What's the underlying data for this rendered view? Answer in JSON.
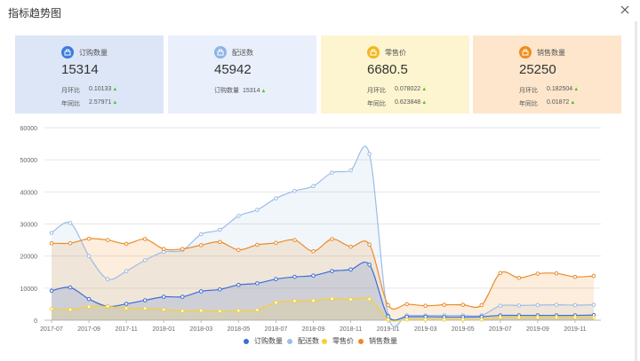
{
  "modal": {
    "title": "指标趋势图"
  },
  "cards": [
    {
      "name": "订购数量",
      "value": "15314",
      "accent": "#3b7be0",
      "bg": "#dce6f7",
      "rows": [
        {
          "label": "月环比",
          "value": "0.10133"
        },
        {
          "label": "年同比",
          "value": "2.57971"
        }
      ]
    },
    {
      "name": "配送数",
      "value": "45942",
      "accent": "#8fb4e6",
      "bg": "#e9effb",
      "rows": [
        {
          "label": "订购数量",
          "value": "15314"
        }
      ]
    },
    {
      "name": "零售价",
      "value": "6680.5",
      "accent": "#f2b821",
      "bg": "#fdf5cf",
      "rows": [
        {
          "label": "月环比",
          "value": "0.078022"
        },
        {
          "label": "年同比",
          "value": "0.623848"
        }
      ]
    },
    {
      "name": "销售数量",
      "value": "25250",
      "accent": "#ef8b1d",
      "bg": "#fde6cc",
      "rows": [
        {
          "label": "月环比",
          "value": "0.182504"
        },
        {
          "label": "年同比",
          "value": "0.01872"
        }
      ]
    }
  ],
  "chart_data": {
    "type": "area",
    "y_ticks": [
      "0",
      "10000",
      "20000",
      "30000",
      "40000",
      "50000",
      "60000"
    ],
    "ylim": [
      0,
      60000
    ],
    "x_ticks": [
      "2017-07",
      "2017-09",
      "2017-11",
      "2018-01",
      "2018-03",
      "2018-05",
      "2018-07",
      "2018-09",
      "2018-11",
      "2019-01",
      "2019-03",
      "2019-05",
      "2019-07",
      "2019-09",
      "2019-11"
    ],
    "categories": [
      "2017-07",
      "2017-08",
      "2017-09",
      "2017-10",
      "2017-11",
      "2017-12",
      "2018-01",
      "2018-02",
      "2018-03",
      "2018-04",
      "2018-05",
      "2018-06",
      "2018-07",
      "2018-08",
      "2018-09",
      "2018-10",
      "2018-11",
      "2018-12",
      "2019-01",
      "2019-02",
      "2019-03",
      "2019-04",
      "2019-05",
      "2019-06",
      "2019-07",
      "2019-08",
      "2019-09",
      "2019-10",
      "2019-11",
      "2019-12"
    ],
    "grid": true,
    "legend_position": "bottom",
    "series": [
      {
        "name": "订购数量",
        "color": "#3b6fd4",
        "values": [
          9200,
          10200,
          6600,
          4300,
          5100,
          6200,
          7300,
          7300,
          9000,
          9600,
          11000,
          11500,
          12800,
          13500,
          13900,
          15300,
          15800,
          17300,
          1200,
          1100,
          1100,
          1000,
          1000,
          1100,
          1500,
          1500,
          1500,
          1500,
          1500,
          1600
        ]
      },
      {
        "name": "配送数",
        "color": "#9cbde6",
        "values": [
          27200,
          30300,
          20000,
          12800,
          15300,
          18700,
          21300,
          21800,
          26800,
          28200,
          32500,
          34400,
          38000,
          40300,
          41800,
          46000,
          46700,
          51800,
          1500,
          1500,
          1500,
          1500,
          1500,
          1500,
          4500,
          4600,
          4700,
          4800,
          4700,
          4800
        ]
      },
      {
        "name": "零售价",
        "color": "#f5d033",
        "values": [
          3500,
          3300,
          4200,
          4300,
          3700,
          3700,
          3300,
          2900,
          3000,
          2800,
          3000,
          3200,
          5500,
          6000,
          6100,
          6700,
          6500,
          6600,
          200,
          200,
          200,
          200,
          200,
          200,
          900,
          900,
          900,
          900,
          900,
          900
        ]
      },
      {
        "name": "销售数量",
        "color": "#ea8c2c",
        "values": [
          24000,
          24000,
          25400,
          25000,
          23800,
          25300,
          22200,
          22200,
          23400,
          24400,
          21900,
          23500,
          24100,
          25000,
          21500,
          25300,
          22900,
          23600,
          4700,
          5000,
          4500,
          4800,
          4800,
          4700,
          14700,
          13200,
          14500,
          14600,
          13500,
          13800
        ]
      }
    ]
  }
}
